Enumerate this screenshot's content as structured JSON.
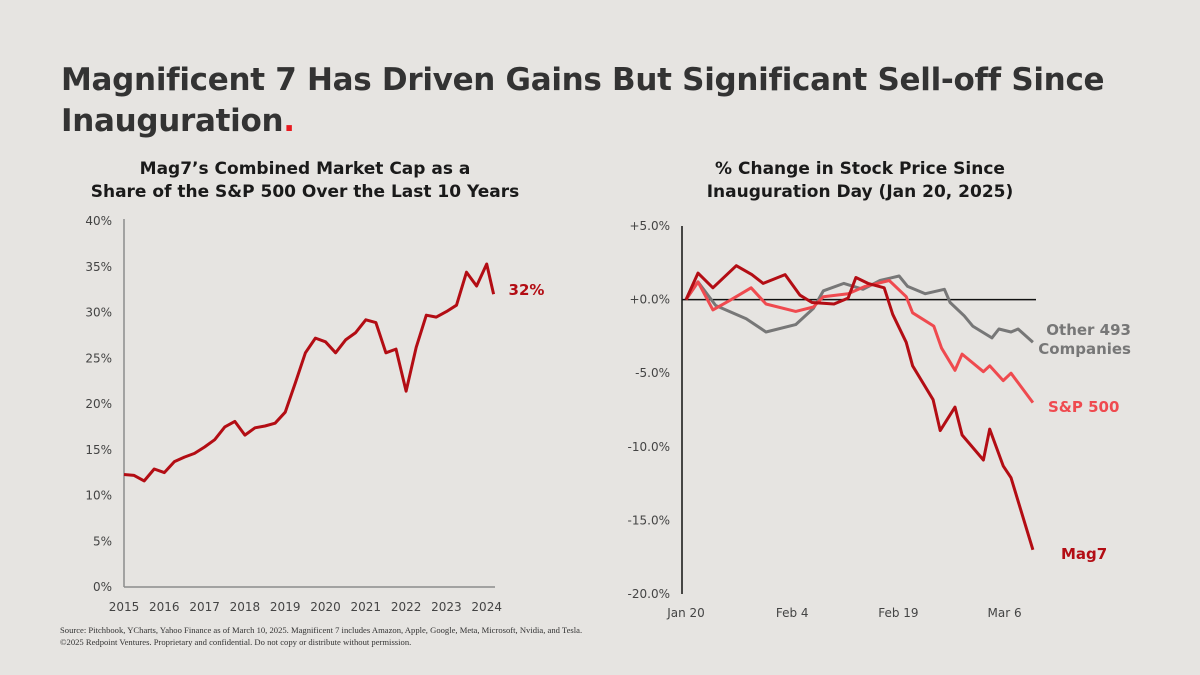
{
  "header": {
    "title": "Magnificent 7 Has Driven Gains But Significant Sell-off Since Inauguration",
    "title_dot": "."
  },
  "colors": {
    "background": "#e6e4e1",
    "mag7": "#b30d14",
    "sp500": "#ef4a4f",
    "other493": "#777777",
    "accent_dot": "#e8191f"
  },
  "chart_data": [
    {
      "type": "line",
      "title_line1": "Mag7’s Combined Market Cap as a",
      "title_line2": "Share of the S&P 500 Over the Last 10 Years",
      "xlabel": "",
      "ylabel": "",
      "ylim": [
        0,
        40
      ],
      "yticks": [
        0,
        5,
        10,
        15,
        20,
        25,
        30,
        35,
        40
      ],
      "ytick_labels": [
        "0%",
        "5%",
        "10%",
        "15%",
        "20%",
        "25%",
        "30%",
        "35%",
        "40%"
      ],
      "xlim": [
        2015,
        2024.25
      ],
      "xticks": [
        2015,
        2016,
        2017,
        2018,
        2019,
        2020,
        2021,
        2022,
        2023,
        2024
      ],
      "xtick_labels": [
        "2015",
        "2016",
        "2017",
        "2018",
        "2019",
        "2020",
        "2021",
        "2022",
        "2023",
        "2024"
      ],
      "grid": false,
      "series": [
        {
          "name": "Mag7 share of S&P 500",
          "color": "#b30d14",
          "x": [
            2015.0,
            2015.25,
            2015.5,
            2015.75,
            2016.0,
            2016.25,
            2016.5,
            2016.75,
            2017.0,
            2017.25,
            2017.5,
            2017.75,
            2018.0,
            2018.25,
            2018.5,
            2018.75,
            2019.0,
            2019.25,
            2019.5,
            2019.75,
            2020.0,
            2020.25,
            2020.5,
            2020.75,
            2021.0,
            2021.25,
            2021.5,
            2021.75,
            2022.0,
            2022.25,
            2022.5,
            2022.75,
            2023.0,
            2023.25,
            2023.5,
            2023.75,
            2024.0,
            2024.17
          ],
          "values": [
            12.3,
            12.2,
            11.6,
            12.9,
            12.5,
            13.7,
            14.2,
            14.6,
            15.3,
            16.1,
            17.5,
            18.1,
            16.6,
            17.4,
            17.6,
            17.9,
            19.1,
            22.3,
            25.6,
            27.2,
            26.8,
            25.6,
            27.0,
            27.8,
            29.2,
            28.9,
            25.6,
            26.0,
            21.4,
            26.2,
            29.7,
            29.5,
            30.1,
            30.8,
            34.4,
            32.9,
            35.3,
            32.0
          ]
        }
      ],
      "end_label": "32%"
    },
    {
      "type": "line",
      "title_line1": "% Change in Stock Price Since",
      "title_line2": "Inauguration Day (Jan 20, 2025)",
      "xlabel": "",
      "ylabel": "",
      "ylim": [
        -20,
        5
      ],
      "yticks": [
        5,
        0,
        -5,
        -10,
        -15,
        -20
      ],
      "ytick_labels": [
        "+5.0%",
        "+0.0%",
        "-5.0%",
        "-10.0%",
        "-15.0%",
        "-20.0%"
      ],
      "x_unit": "days since Jan 20, 2025",
      "xlim": [
        0,
        49
      ],
      "xticks": [
        0,
        15,
        30,
        45
      ],
      "xtick_labels": [
        "Jan 20",
        "Feb 4",
        "Feb 19",
        "Mar 6"
      ],
      "grid": false,
      "zero_line": true,
      "series": [
        {
          "name": "Mag7",
          "label": "Mag7",
          "color": "#b30d14",
          "x": [
            0,
            1.7,
            3.8,
            7.1,
            9.3,
            10.9,
            14,
            16.1,
            17.8,
            20.9,
            22.9,
            24,
            25.7,
            28,
            29.2,
            31.1,
            32,
            34.9,
            35.9,
            38,
            39,
            42,
            42.9,
            44.8,
            45.9,
            49
          ],
          "values": [
            0.0,
            1.8,
            0.8,
            2.3,
            1.7,
            1.1,
            1.7,
            0.3,
            -0.2,
            -0.3,
            0.1,
            1.5,
            1.1,
            0.8,
            -1.0,
            -2.9,
            -4.5,
            -6.8,
            -8.9,
            -7.3,
            -9.2,
            -10.9,
            -8.8,
            -11.3,
            -12.1,
            -17.0
          ]
        },
        {
          "name": "S&P 500",
          "label": "S&P 500",
          "color": "#ef4a4f",
          "x": [
            0,
            1.7,
            3.8,
            6.4,
            9.2,
            11.3,
            15.5,
            18,
            19.4,
            22.9,
            25.3,
            28.7,
            31.1,
            32,
            35,
            36.1,
            38,
            39,
            42,
            42.9,
            44.8,
            45.9,
            49
          ],
          "values": [
            0.0,
            1.2,
            -0.7,
            0.0,
            0.8,
            -0.3,
            -0.8,
            -0.5,
            0.2,
            0.4,
            0.9,
            1.3,
            0.2,
            -0.9,
            -1.8,
            -3.3,
            -4.8,
            -3.7,
            -4.9,
            -4.5,
            -5.5,
            -5.0,
            -7.0
          ]
        },
        {
          "name": "Other 493 Companies",
          "label_line1": "Other 493",
          "label_line2": "Companies",
          "color": "#777777",
          "x": [
            0,
            1.7,
            4.2,
            8.5,
            11.3,
            15.5,
            18,
            19.4,
            22.3,
            25,
            27.4,
            30.1,
            31.3,
            33.8,
            36.5,
            37.3,
            39.3,
            40.5,
            43.2,
            44.2,
            45.9,
            46.9,
            49
          ],
          "values": [
            0.0,
            1.2,
            -0.4,
            -1.3,
            -2.2,
            -1.7,
            -0.6,
            0.6,
            1.1,
            0.7,
            1.3,
            1.6,
            0.9,
            0.4,
            0.7,
            -0.2,
            -1.1,
            -1.8,
            -2.6,
            -2.0,
            -2.2,
            -2.0,
            -2.9
          ]
        }
      ]
    }
  ],
  "footer": {
    "source": "Source: Pitchbook, YCharts, Yahoo Finance as of March 10, 2025. Magnificent 7 includes Amazon, Apple, Google, Meta, Microsoft, Nvidia, and Tesla.",
    "copyright": "©2025 Redpoint Ventures. Proprietary and confidential. Do not copy or distribute without permission."
  }
}
